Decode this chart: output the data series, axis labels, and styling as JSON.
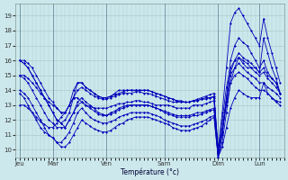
{
  "background_color": "#cce8ec",
  "grid_color": "#aacccc",
  "line_color": "#0000bb",
  "xlabel": "Température (°c)",
  "ylim": [
    9.5,
    19.8
  ],
  "yticks": [
    10,
    11,
    12,
    13,
    14,
    15,
    16,
    17,
    18,
    19
  ],
  "day_labels": [
    "Jeu",
    "Mar",
    "Ven",
    "Sam",
    "Dim",
    "Lun"
  ],
  "series": [
    [
      13.0,
      13.0,
      12.8,
      12.5,
      12.2,
      11.9,
      11.7,
      11.5,
      11.5,
      11.8,
      12.2,
      12.5,
      13.0,
      13.5,
      13.5,
      13.2,
      13.0,
      12.9,
      12.8,
      12.8,
      12.8,
      12.8,
      12.9,
      13.0,
      13.1,
      13.1,
      13.2,
      13.2,
      13.3,
      13.3,
      13.2,
      13.2,
      13.1,
      13.0,
      13.0,
      13.0,
      13.0,
      12.9,
      12.8,
      12.8,
      12.8,
      12.8,
      13.0,
      13.0,
      13.0,
      13.1,
      13.2,
      13.3,
      9.5,
      11.2,
      13.0,
      14.5,
      15.0,
      15.2,
      15.0,
      14.8,
      14.5,
      14.2,
      14.0,
      14.0,
      13.8,
      13.5,
      13.3,
      13.2
    ],
    [
      15.0,
      15.0,
      14.8,
      14.5,
      14.2,
      13.8,
      13.5,
      13.2,
      13.0,
      12.8,
      12.5,
      12.5,
      13.0,
      13.5,
      14.0,
      14.2,
      14.0,
      13.8,
      13.6,
      13.5,
      13.4,
      13.4,
      13.5,
      13.6,
      13.7,
      13.8,
      13.8,
      13.8,
      13.9,
      13.9,
      13.8,
      13.8,
      13.7,
      13.6,
      13.5,
      13.4,
      13.3,
      13.2,
      13.2,
      13.2,
      13.2,
      13.2,
      13.3,
      13.3,
      13.4,
      13.4,
      13.5,
      13.5,
      9.8,
      11.5,
      13.5,
      15.0,
      15.5,
      15.8,
      15.5,
      15.2,
      15.0,
      14.8,
      14.5,
      14.5,
      14.2,
      14.0,
      13.8,
      13.5
    ],
    [
      16.0,
      16.0,
      15.8,
      15.5,
      15.0,
      14.5,
      14.0,
      13.5,
      13.2,
      12.8,
      12.5,
      12.5,
      13.0,
      14.0,
      14.5,
      14.5,
      14.2,
      14.0,
      13.8,
      13.6,
      13.5,
      13.5,
      13.6,
      13.7,
      13.8,
      13.9,
      14.0,
      14.0,
      14.0,
      14.0,
      14.0,
      14.0,
      13.9,
      13.8,
      13.7,
      13.6,
      13.5,
      13.4,
      13.3,
      13.3,
      13.2,
      13.2,
      13.3,
      13.3,
      13.4,
      13.5,
      13.5,
      13.6,
      10.0,
      12.0,
      14.2,
      15.5,
      16.0,
      16.2,
      16.0,
      15.8,
      15.5,
      15.2,
      15.0,
      15.2,
      14.8,
      14.5,
      14.2,
      13.8
    ],
    [
      16.0,
      15.8,
      15.5,
      15.0,
      14.5,
      14.0,
      13.5,
      13.0,
      12.5,
      12.0,
      11.8,
      11.5,
      12.0,
      12.5,
      13.2,
      13.5,
      13.2,
      13.0,
      12.8,
      12.5,
      12.4,
      12.3,
      12.5,
      12.6,
      12.8,
      12.9,
      13.0,
      13.0,
      13.0,
      13.0,
      13.0,
      13.0,
      12.9,
      12.8,
      12.7,
      12.6,
      12.5,
      12.4,
      12.3,
      12.3,
      12.3,
      12.3,
      12.4,
      12.5,
      12.5,
      12.6,
      12.7,
      12.8,
      9.5,
      11.0,
      13.5,
      16.0,
      17.0,
      17.5,
      17.2,
      17.0,
      16.5,
      16.0,
      15.5,
      16.0,
      15.2,
      14.8,
      14.5,
      13.8
    ],
    [
      15.0,
      14.8,
      14.5,
      14.0,
      13.5,
      13.0,
      12.5,
      12.0,
      11.8,
      11.5,
      11.5,
      11.5,
      12.0,
      12.5,
      13.0,
      13.2,
      13.0,
      12.8,
      12.6,
      12.4,
      12.3,
      12.3,
      12.4,
      12.5,
      12.7,
      12.8,
      12.9,
      13.0,
      13.0,
      13.0,
      13.0,
      13.0,
      12.9,
      12.8,
      12.7,
      12.5,
      12.4,
      12.3,
      12.2,
      12.2,
      12.2,
      12.2,
      12.3,
      12.3,
      12.4,
      12.5,
      12.6,
      12.7,
      10.0,
      11.2,
      13.2,
      15.2,
      16.0,
      16.5,
      16.2,
      16.0,
      15.8,
      15.5,
      15.2,
      15.5,
      15.0,
      14.8,
      14.5,
      13.8
    ],
    [
      13.8,
      13.5,
      13.0,
      12.5,
      12.0,
      11.5,
      11.2,
      11.0,
      10.8,
      10.5,
      10.2,
      10.2,
      10.5,
      11.0,
      11.5,
      12.0,
      11.8,
      11.6,
      11.4,
      11.3,
      11.2,
      11.2,
      11.3,
      11.5,
      11.7,
      11.8,
      12.0,
      12.1,
      12.2,
      12.2,
      12.2,
      12.2,
      12.1,
      12.0,
      11.9,
      11.8,
      11.7,
      11.5,
      11.4,
      11.3,
      11.3,
      11.3,
      11.4,
      11.5,
      11.6,
      11.8,
      12.0,
      12.2,
      9.5,
      10.2,
      11.5,
      12.8,
      13.5,
      14.0,
      13.8,
      13.6,
      13.5,
      13.5,
      13.5,
      14.5,
      13.8,
      13.5,
      13.2,
      13.0
    ],
    [
      14.0,
      13.8,
      13.5,
      13.0,
      12.5,
      12.0,
      11.5,
      11.0,
      10.8,
      10.5,
      10.5,
      10.8,
      11.2,
      11.8,
      12.5,
      12.8,
      12.5,
      12.2,
      12.0,
      11.9,
      11.8,
      11.8,
      11.9,
      12.0,
      12.2,
      12.3,
      12.4,
      12.5,
      12.5,
      12.5,
      12.5,
      12.5,
      12.4,
      12.3,
      12.2,
      12.0,
      11.9,
      11.8,
      11.7,
      11.6,
      11.6,
      11.6,
      11.7,
      11.8,
      11.9,
      12.0,
      12.2,
      12.3,
      9.5,
      10.5,
      12.5,
      14.5,
      15.5,
      16.2,
      15.8,
      15.5,
      15.5,
      15.5,
      15.2,
      17.5,
      16.5,
      15.5,
      14.8,
      13.8
    ],
    [
      16.0,
      15.8,
      15.5,
      15.0,
      14.5,
      14.0,
      13.5,
      13.0,
      12.5,
      12.0,
      11.8,
      12.0,
      12.5,
      13.5,
      14.5,
      14.5,
      14.2,
      14.0,
      13.8,
      13.6,
      13.5,
      13.5,
      13.6,
      13.8,
      14.0,
      14.0,
      14.0,
      14.0,
      14.0,
      14.0,
      14.0,
      14.0,
      13.9,
      13.8,
      13.7,
      13.6,
      13.5,
      13.4,
      13.3,
      13.2,
      13.2,
      13.2,
      13.3,
      13.4,
      13.5,
      13.6,
      13.7,
      13.8,
      10.0,
      12.5,
      15.5,
      18.5,
      19.2,
      19.5,
      19.0,
      18.5,
      18.0,
      17.5,
      17.0,
      18.8,
      17.5,
      16.5,
      15.5,
      14.5
    ]
  ]
}
